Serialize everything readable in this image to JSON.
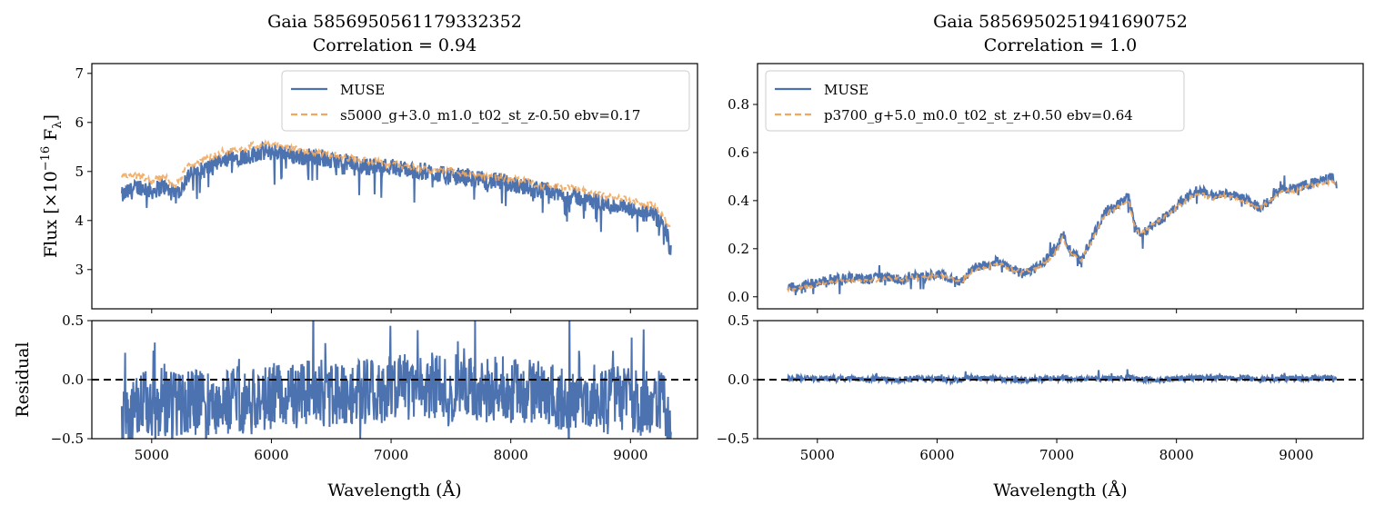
{
  "colors": {
    "muse": "#4c72b0",
    "model": "#f0a860",
    "zero_line": "#000000"
  },
  "chart_data": [
    {
      "type": "line",
      "title_line1": "Gaia 5856950561179332352",
      "title_line2": "Correlation = 0.94",
      "xlabel": "Wavelength (Å)",
      "ylabel_top": "Flux [×10",
      "ylabel_exp": "−16",
      "ylabel_unit": " F",
      "ylabel_sub": "λ",
      "ylabel_end": "]",
      "ylabel_bottom": "Residual",
      "xlim": [
        4500,
        9560
      ],
      "ylim_top": [
        2.2,
        7.2
      ],
      "ylim_bottom": [
        -0.5,
        0.5
      ],
      "xticks": [
        5000,
        6000,
        7000,
        8000,
        9000
      ],
      "yticks_top": [
        3,
        4,
        5,
        6,
        7
      ],
      "yticks_bottom": [
        -0.5,
        0.0,
        0.5
      ],
      "ytick_labels_bottom": [
        "−0.5",
        "0.0",
        "0.5"
      ],
      "legend": [
        "MUSE",
        "s5000_g+3.0_m1.0_t02_st_z-0.50 ebv=0.17"
      ],
      "legend_position": "top-right",
      "series": [
        {
          "name": "MUSE",
          "x": [
            4750,
            4900,
            5000,
            5100,
            5200,
            5300,
            5400,
            5500,
            5600,
            5700,
            5800,
            5900,
            6000,
            6100,
            6200,
            6300,
            6400,
            6500,
            6600,
            6700,
            6800,
            6900,
            7000,
            7100,
            7200,
            7300,
            7400,
            7500,
            7600,
            7700,
            7800,
            7900,
            8000,
            8100,
            8200,
            8300,
            8400,
            8500,
            8600,
            8700,
            8800,
            8900,
            9000,
            9100,
            9200,
            9300,
            9340
          ],
          "y": [
            4.5,
            4.7,
            4.6,
            4.7,
            4.5,
            4.9,
            5.0,
            5.1,
            5.2,
            5.3,
            5.3,
            5.4,
            5.4,
            5.4,
            5.3,
            5.3,
            5.3,
            5.2,
            5.2,
            5.15,
            5.1,
            5.1,
            5.1,
            5.05,
            5.0,
            5.0,
            4.95,
            4.9,
            4.9,
            4.85,
            4.8,
            4.8,
            4.75,
            4.7,
            4.65,
            4.6,
            4.55,
            4.5,
            4.45,
            4.4,
            4.3,
            4.3,
            4.2,
            4.15,
            4.1,
            3.8,
            3.3
          ]
        },
        {
          "name": "s5000_g+3.0_m1.0_t02_st_z-0.50 ebv=0.17",
          "x": [
            4750,
            4900,
            5000,
            5100,
            5200,
            5300,
            5400,
            5500,
            5600,
            5700,
            5800,
            5900,
            6000,
            6100,
            6200,
            6300,
            6400,
            6500,
            6600,
            6700,
            6800,
            6900,
            7000,
            7100,
            7200,
            7300,
            7400,
            7500,
            7600,
            7700,
            7800,
            7900,
            8000,
            8100,
            8200,
            8300,
            8400,
            8500,
            8600,
            8700,
            8800,
            8900,
            9000,
            9100,
            9200,
            9300,
            9340
          ],
          "y": [
            4.9,
            4.9,
            4.8,
            4.9,
            4.7,
            5.1,
            5.2,
            5.3,
            5.4,
            5.45,
            5.5,
            5.55,
            5.55,
            5.5,
            5.45,
            5.4,
            5.4,
            5.35,
            5.3,
            5.25,
            5.2,
            5.2,
            5.15,
            5.1,
            5.1,
            5.05,
            5.0,
            5.0,
            4.95,
            4.95,
            4.9,
            4.85,
            4.85,
            4.8,
            4.75,
            4.7,
            4.7,
            4.65,
            4.6,
            4.55,
            4.5,
            4.45,
            4.4,
            4.35,
            4.3,
            4.0,
            3.8
          ]
        },
        {
          "name": "Residual",
          "x": [
            4750,
            4900,
            5000,
            5100,
            5200,
            5300,
            5400,
            5500,
            5600,
            5700,
            5800,
            5900,
            6000,
            6100,
            6200,
            6300,
            6400,
            6500,
            6600,
            6700,
            6800,
            6900,
            7000,
            7100,
            7200,
            7300,
            7400,
            7500,
            7600,
            7700,
            7800,
            7900,
            8000,
            8100,
            8200,
            8300,
            8400,
            8500,
            8600,
            8700,
            8800,
            8900,
            9000,
            9100,
            9200,
            9300,
            9340
          ],
          "y": [
            -0.4,
            -0.2,
            -0.2,
            -0.2,
            -0.2,
            -0.2,
            -0.2,
            -0.2,
            -0.2,
            -0.15,
            -0.2,
            -0.15,
            -0.15,
            -0.1,
            -0.15,
            -0.1,
            -0.1,
            -0.15,
            -0.1,
            -0.1,
            -0.1,
            -0.1,
            -0.05,
            -0.05,
            -0.1,
            -0.05,
            -0.05,
            -0.1,
            0.0,
            -0.1,
            -0.1,
            -0.05,
            -0.1,
            -0.1,
            -0.1,
            -0.1,
            -0.15,
            -0.15,
            -0.15,
            -0.15,
            -0.2,
            -0.15,
            -0.2,
            -0.2,
            -0.2,
            -0.2,
            -0.4
          ]
        }
      ]
    },
    {
      "type": "line",
      "title_line1": "Gaia 5856950251941690752",
      "title_line2": "Correlation = 1.0",
      "xlabel": "Wavelength (Å)",
      "xlim": [
        4500,
        9560
      ],
      "ylim_top": [
        -0.05,
        0.97
      ],
      "ylim_bottom": [
        -0.5,
        0.5
      ],
      "xticks": [
        5000,
        6000,
        7000,
        8000,
        9000
      ],
      "yticks_top": [
        0.0,
        0.2,
        0.4,
        0.6,
        0.8
      ],
      "ytick_labels_top": [
        "0.0",
        "0.2",
        "0.4",
        "0.6",
        "0.8"
      ],
      "yticks_bottom": [
        -0.5,
        0.0,
        0.5
      ],
      "ytick_labels_bottom": [
        "−0.5",
        "0.0",
        "0.5"
      ],
      "legend": [
        "MUSE",
        "p3700_g+5.0_m0.0_t02_st_z+0.50 ebv=0.64"
      ],
      "legend_position": "top-left",
      "series": [
        {
          "name": "MUSE",
          "x": [
            4750,
            4900,
            5000,
            5100,
            5200,
            5300,
            5400,
            5500,
            5600,
            5700,
            5800,
            5900,
            6000,
            6100,
            6200,
            6300,
            6400,
            6500,
            6600,
            6700,
            6800,
            6900,
            7000,
            7050,
            7100,
            7200,
            7300,
            7400,
            7500,
            7600,
            7650,
            7700,
            7800,
            7900,
            8000,
            8100,
            8200,
            8300,
            8400,
            8500,
            8600,
            8700,
            8800,
            8900,
            9000,
            9100,
            9200,
            9300,
            9340
          ],
          "y": [
            0.04,
            0.05,
            0.06,
            0.07,
            0.08,
            0.08,
            0.07,
            0.08,
            0.08,
            0.07,
            0.09,
            0.08,
            0.1,
            0.08,
            0.06,
            0.12,
            0.13,
            0.15,
            0.12,
            0.1,
            0.11,
            0.15,
            0.2,
            0.27,
            0.2,
            0.15,
            0.25,
            0.35,
            0.38,
            0.42,
            0.3,
            0.26,
            0.3,
            0.33,
            0.38,
            0.42,
            0.45,
            0.42,
            0.43,
            0.42,
            0.4,
            0.37,
            0.42,
            0.45,
            0.45,
            0.47,
            0.48,
            0.5,
            0.45
          ]
        },
        {
          "name": "p3700_g+5.0_m0.0_t02_st_z+0.50 ebv=0.64",
          "x": [
            4750,
            4900,
            5000,
            5100,
            5200,
            5300,
            5400,
            5500,
            5600,
            5700,
            5800,
            5900,
            6000,
            6100,
            6200,
            6300,
            6400,
            6500,
            6600,
            6700,
            6800,
            6900,
            7000,
            7050,
            7100,
            7200,
            7300,
            7400,
            7500,
            7600,
            7650,
            7700,
            7800,
            7900,
            8000,
            8100,
            8200,
            8300,
            8400,
            8500,
            8600,
            8700,
            8800,
            8900,
            9000,
            9100,
            9200,
            9300,
            9340
          ],
          "y": [
            0.03,
            0.04,
            0.05,
            0.06,
            0.07,
            0.07,
            0.07,
            0.07,
            0.08,
            0.07,
            0.08,
            0.08,
            0.09,
            0.08,
            0.06,
            0.11,
            0.12,
            0.14,
            0.12,
            0.1,
            0.11,
            0.14,
            0.19,
            0.25,
            0.19,
            0.15,
            0.24,
            0.34,
            0.37,
            0.4,
            0.29,
            0.26,
            0.3,
            0.33,
            0.37,
            0.41,
            0.43,
            0.41,
            0.42,
            0.41,
            0.39,
            0.37,
            0.41,
            0.44,
            0.44,
            0.46,
            0.47,
            0.48,
            0.46
          ]
        },
        {
          "name": "Residual",
          "x": [
            4750,
            4900,
            5000,
            5100,
            5200,
            5300,
            5400,
            5500,
            5600,
            5700,
            5800,
            5900,
            6000,
            6100,
            6200,
            6300,
            6400,
            6500,
            6600,
            6700,
            6800,
            6900,
            7000,
            7050,
            7100,
            7200,
            7300,
            7400,
            7500,
            7600,
            7650,
            7700,
            7800,
            7900,
            8000,
            8100,
            8200,
            8300,
            8400,
            8500,
            8600,
            8700,
            8800,
            8900,
            9000,
            9100,
            9200,
            9300,
            9340
          ],
          "y": [
            0.01,
            0.01,
            0.01,
            0.01,
            0.01,
            0.01,
            0.0,
            0.01,
            0.0,
            0.0,
            0.01,
            0.0,
            0.01,
            0.0,
            0.0,
            0.01,
            0.01,
            0.01,
            0.0,
            0.0,
            0.0,
            0.01,
            0.01,
            0.02,
            0.01,
            0.0,
            0.01,
            0.01,
            0.01,
            0.02,
            0.01,
            0.0,
            0.0,
            0.0,
            0.01,
            0.01,
            0.02,
            0.01,
            0.01,
            0.01,
            0.01,
            0.0,
            0.01,
            0.01,
            0.01,
            0.01,
            0.01,
            0.02,
            -0.01
          ]
        }
      ]
    }
  ]
}
